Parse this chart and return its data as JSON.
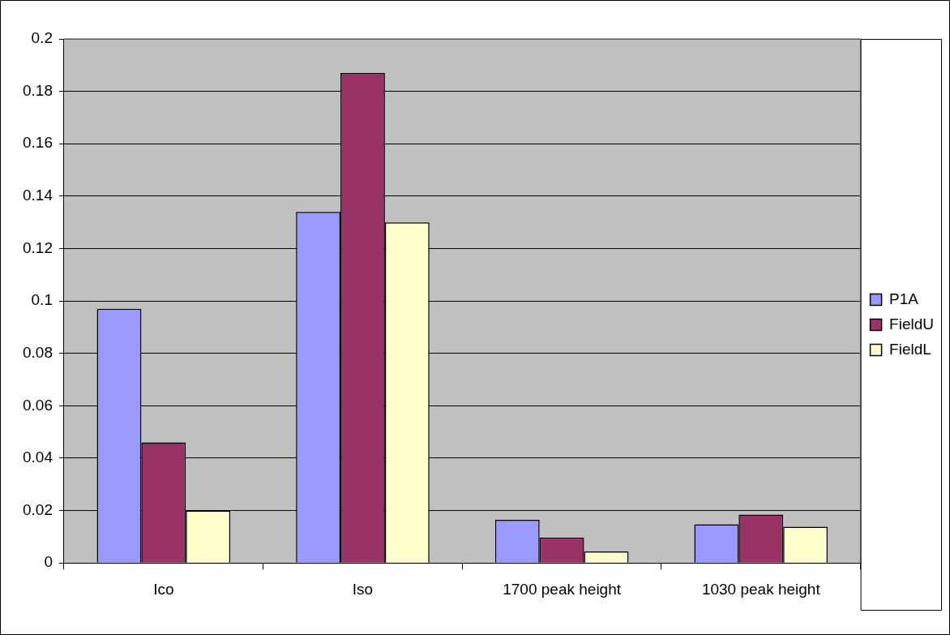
{
  "chart_data": {
    "type": "bar",
    "categories": [
      "Ico",
      "Iso",
      "1700 peak height",
      "1030 peak height"
    ],
    "series": [
      {
        "name": "P1A",
        "color": "#9999ff",
        "values": [
          0.097,
          0.134,
          0.0165,
          0.0148
        ]
      },
      {
        "name": "FieldU",
        "color": "#993366",
        "values": [
          0.046,
          0.187,
          0.0097,
          0.0185
        ]
      },
      {
        "name": "FieldL",
        "color": "#ffffcc",
        "values": [
          0.02,
          0.13,
          0.0044,
          0.0138
        ]
      }
    ],
    "ylim": [
      0,
      0.2
    ],
    "yticks": [
      0,
      0.02,
      0.04,
      0.06,
      0.08,
      0.1,
      0.12,
      0.14,
      0.16,
      0.18,
      0.2
    ],
    "grid": "y",
    "legend": "right"
  }
}
